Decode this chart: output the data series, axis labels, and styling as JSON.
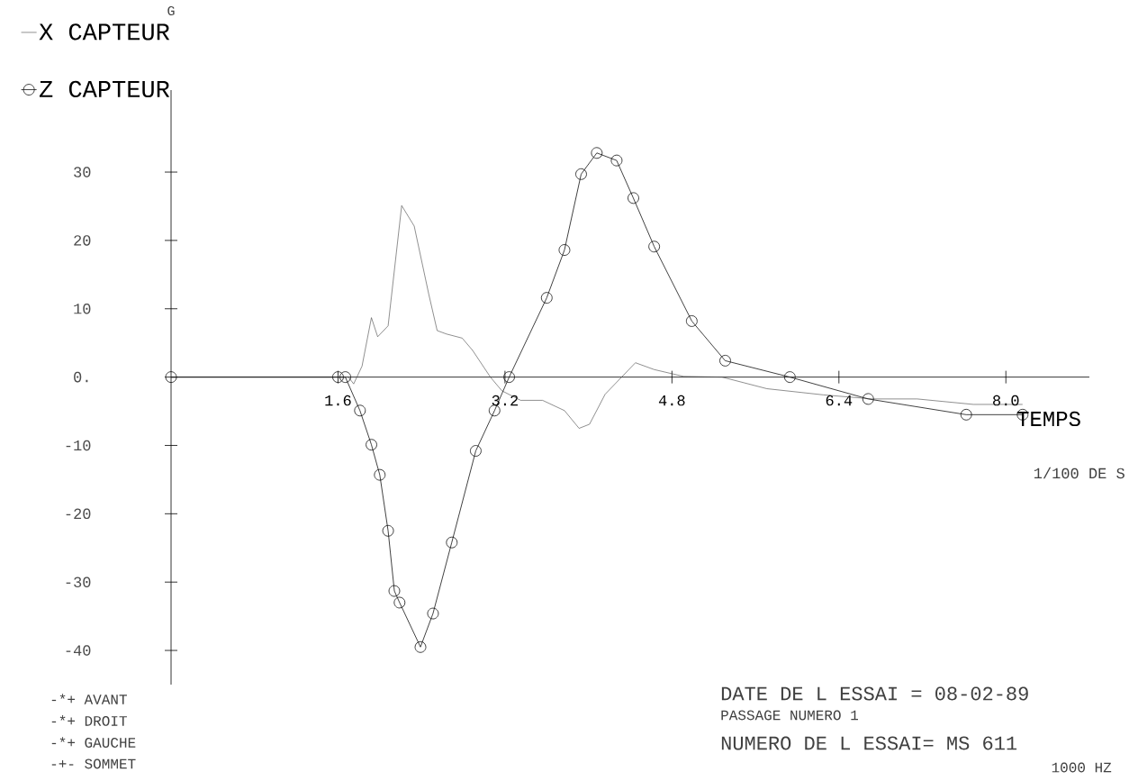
{
  "chart_data": {
    "type": "line",
    "xlabel": "TEMPS",
    "xlim": [
      0,
      8.8
    ],
    "ylim": [
      -45,
      42
    ],
    "xticks": [
      1.6,
      3.2,
      4.8,
      6.4,
      {
        "value": 8,
        "label": "8.0"
      }
    ],
    "yticks": [
      -40,
      -30,
      -20,
      -10,
      {
        "value": 0,
        "label": "0."
      },
      10,
      20,
      30
    ],
    "legend": "top left",
    "grid": false,
    "series": [
      {
        "name": "X CAPTEUR",
        "color": "#444444",
        "marker": "none",
        "x": [
          0,
          1.7,
          1.75,
          1.83,
          1.92,
          1.98,
          2.08,
          2.21,
          2.33,
          2.47,
          2.55,
          2.64,
          2.79,
          2.89,
          3.06,
          3.17,
          3.35,
          3.56,
          3.77,
          3.91,
          4.01,
          4.16,
          4.45,
          4.63,
          4.91,
          5.28,
          5.71,
          6.25,
          6.72,
          7.15,
          7.69,
          8.16
        ],
        "values": [
          0,
          0,
          -1,
          1.6,
          8.7,
          5.9,
          7.5,
          25.1,
          22.1,
          12.1,
          6.8,
          6.3,
          5.7,
          3.9,
          0,
          -2,
          -3.4,
          -3.4,
          -4.9,
          -7.5,
          -6.9,
          -2.5,
          2.1,
          1.1,
          0.1,
          0,
          -1.7,
          -2.6,
          -3.2,
          -3.2,
          -4,
          -4
        ]
      },
      {
        "name": "Z CAPTEUR",
        "color": "#111111",
        "marker": "circle",
        "x": [
          0,
          1.6,
          1.67,
          1.81,
          1.92,
          2.0,
          2.08,
          2.14,
          2.19,
          2.39,
          2.51,
          2.69,
          2.92,
          3.1,
          3.24,
          3.6,
          3.77,
          3.93,
          4.08,
          4.27,
          4.43,
          4.63,
          4.99,
          5.31,
          5.93,
          6.68,
          7.62,
          8.16
        ],
        "values": [
          0,
          0,
          0,
          -4.9,
          -9.9,
          -14.3,
          -22.5,
          -31.3,
          -33,
          -39.5,
          -34.6,
          -24.2,
          -10.8,
          -4.9,
          0,
          11.6,
          18.6,
          29.7,
          32.8,
          31.7,
          26.2,
          19.1,
          8.2,
          2.4,
          0,
          -3.2,
          -5.5,
          -5.5
        ]
      }
    ],
    "annotations": [
      "1/100 DE S",
      "-*+ AVANT",
      "-*+ DROIT",
      "-*+ GAUCHE",
      "-+- SOMMET",
      "DATE DE L ESSAI  =  08-02-89",
      "PASSAGE NUMERO   1",
      "NUMERO DE L ESSAI=   MS 611",
      "1000  HZ",
      "G"
    ]
  }
}
